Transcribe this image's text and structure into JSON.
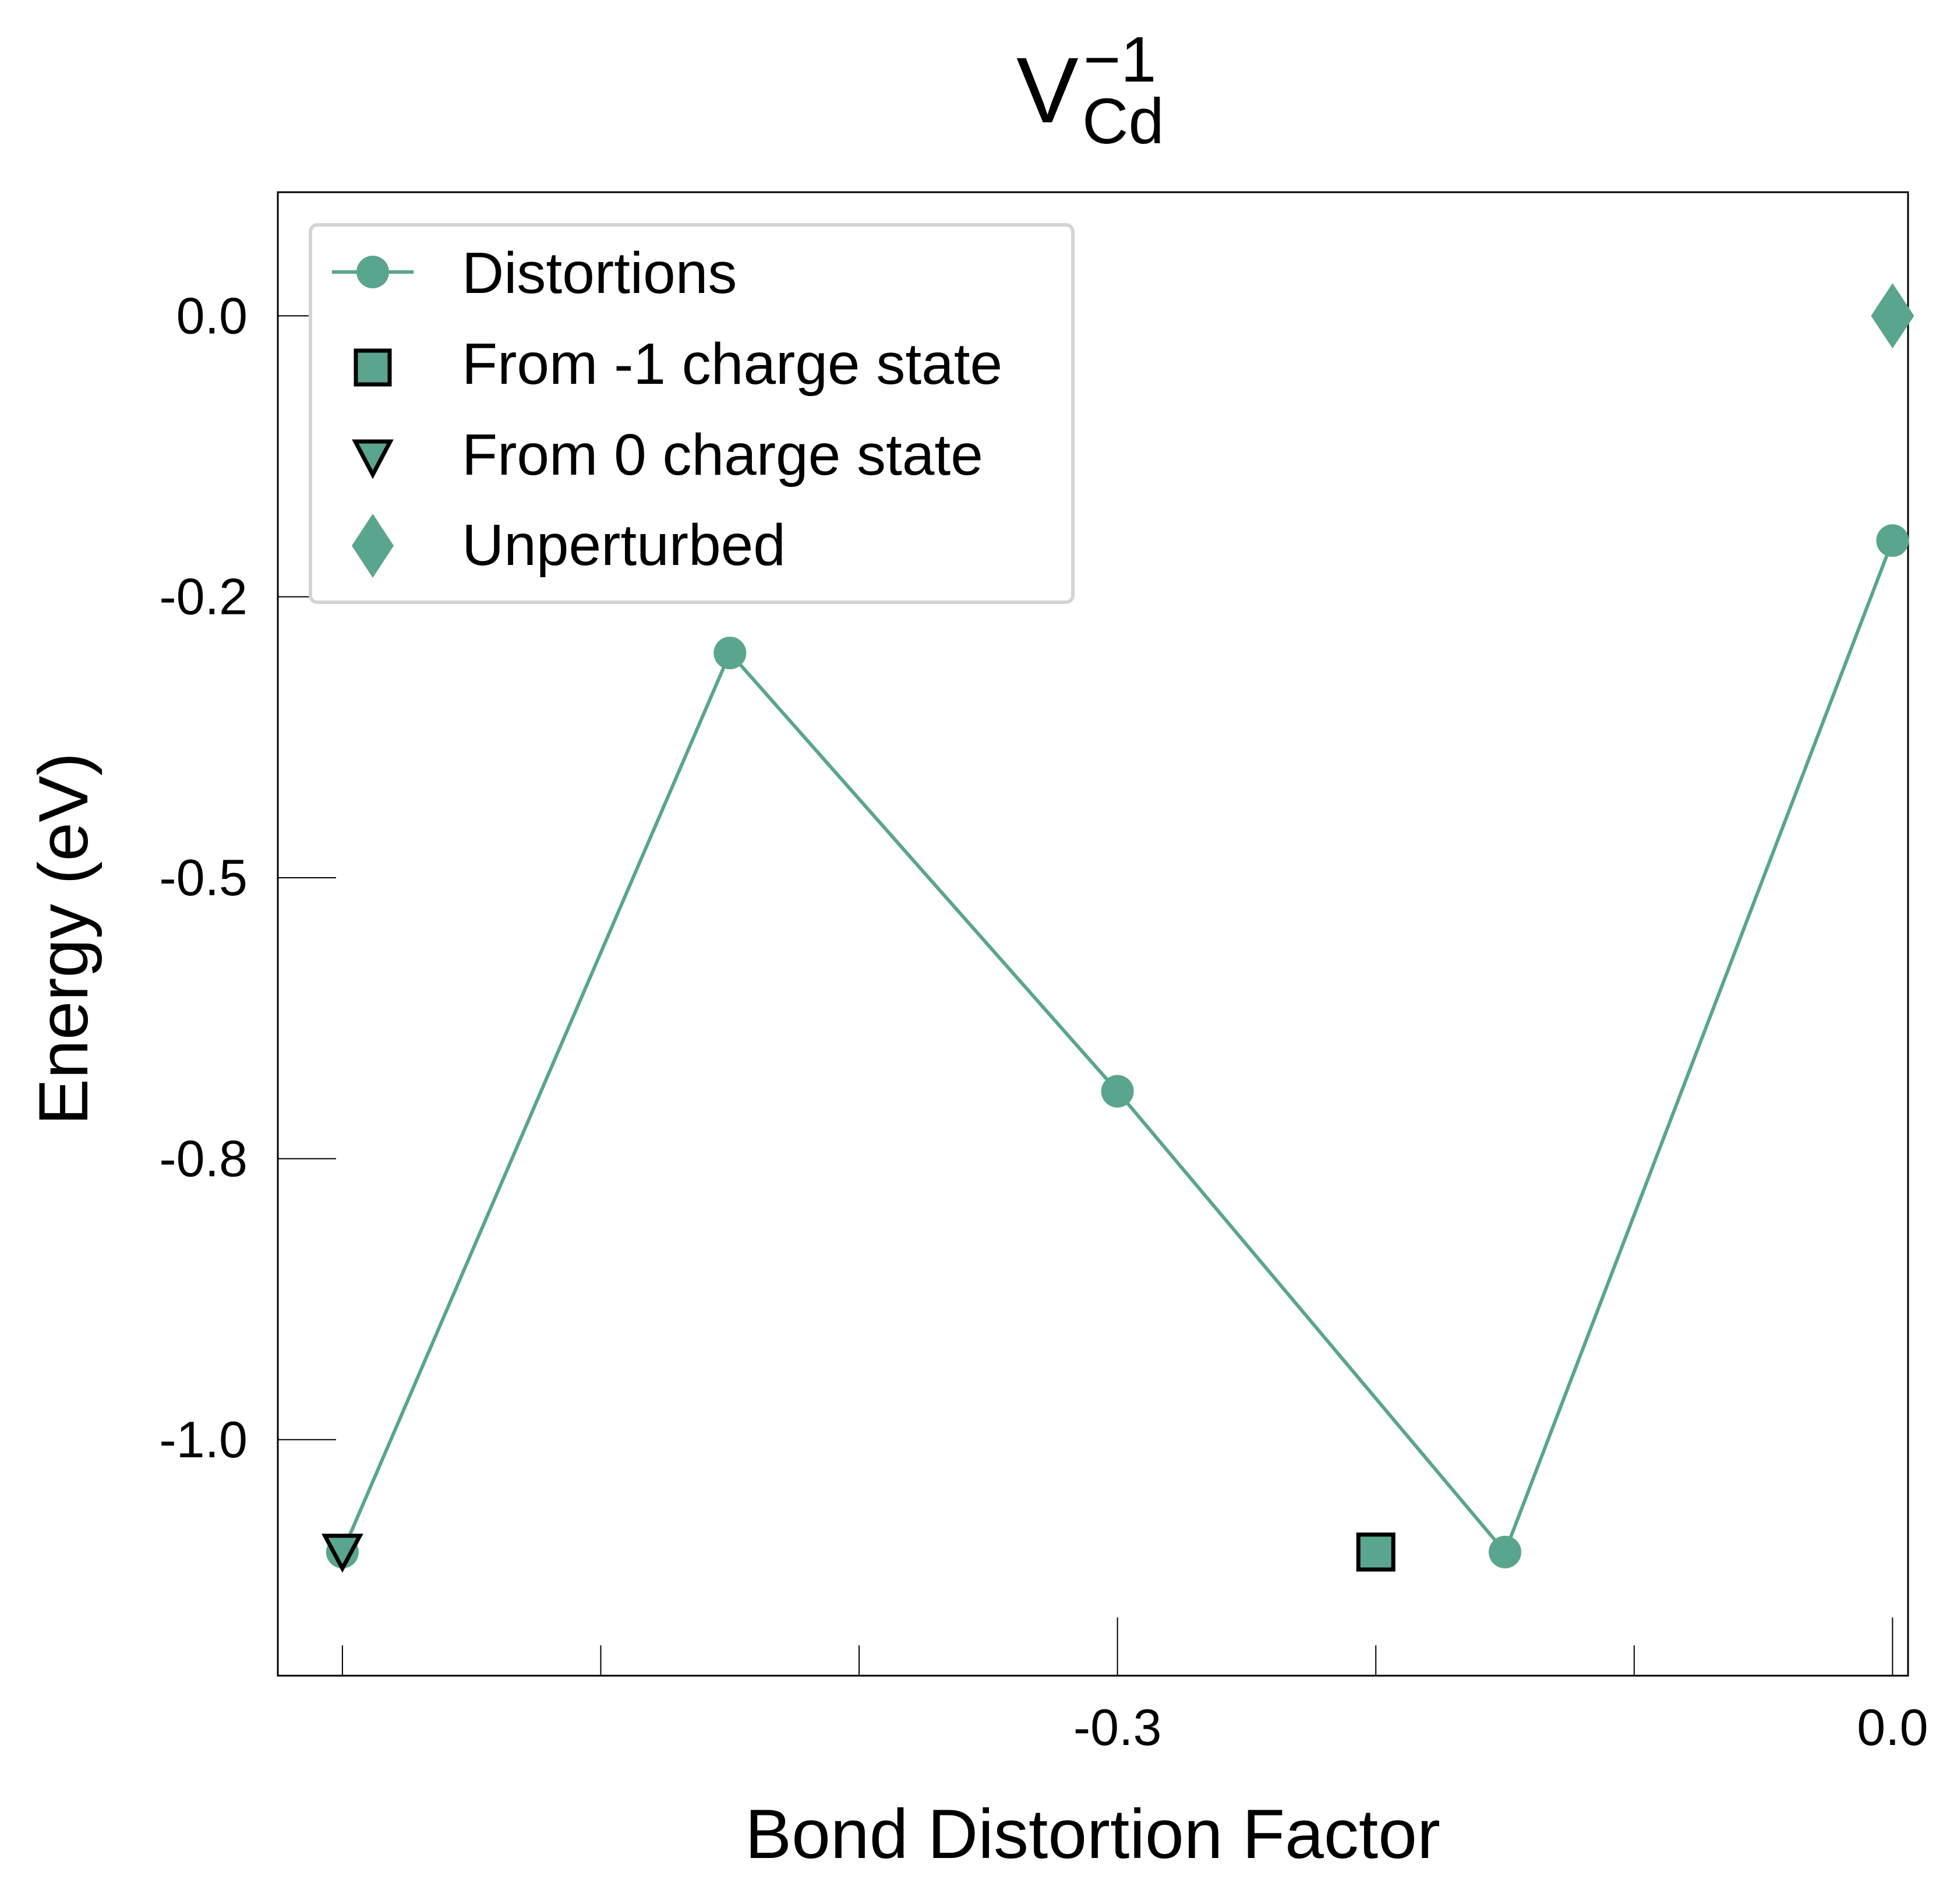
{
  "chart_data": {
    "type": "line",
    "title": {
      "base": "V",
      "subscript": "Cd",
      "superscript": "−1"
    },
    "xlabel": "Bond Distortion Factor",
    "ylabel": "Energy (eV)",
    "xlim": [
      -0.625,
      0.006
    ],
    "ylim": [
      -1.21,
      0.11
    ],
    "x_ticks": [
      -0.6,
      -0.5,
      -0.4,
      -0.3,
      -0.2,
      -0.1,
      0.0
    ],
    "x_tick_labels": [
      {
        "value": -0.3,
        "label": "-0.3"
      },
      {
        "value": 0.0,
        "label": "0.0"
      }
    ],
    "y_ticks": [
      {
        "value": 0.0,
        "label": "0.0"
      },
      {
        "value": -0.25,
        "label": "-0.2"
      },
      {
        "value": -0.5,
        "label": "-0.5"
      },
      {
        "value": -0.75,
        "label": "-0.8"
      },
      {
        "value": -1.0,
        "label": "-1.0"
      }
    ],
    "grid": false,
    "legend_position": "top-left",
    "colors": {
      "series": "#5aa58d",
      "marker_edge": "#000000",
      "legend_frame": "#d4d4d4"
    },
    "series": [
      {
        "name": "Distortions",
        "marker": "circle",
        "x": [
          -0.6,
          -0.45,
          -0.3,
          -0.15,
          0.0
        ],
        "y": [
          -1.1,
          -0.3,
          -0.69,
          -1.1,
          -0.2
        ]
      },
      {
        "name": "From -1 charge state",
        "marker": "square",
        "x": [
          -0.2
        ],
        "y": [
          -1.1
        ]
      },
      {
        "name": "From 0 charge state",
        "marker": "triangle-down",
        "x": [
          -0.6
        ],
        "y": [
          -1.1
        ]
      },
      {
        "name": "Unperturbed",
        "marker": "diamond",
        "x": [
          0.0
        ],
        "y": [
          0.0
        ]
      }
    ]
  }
}
